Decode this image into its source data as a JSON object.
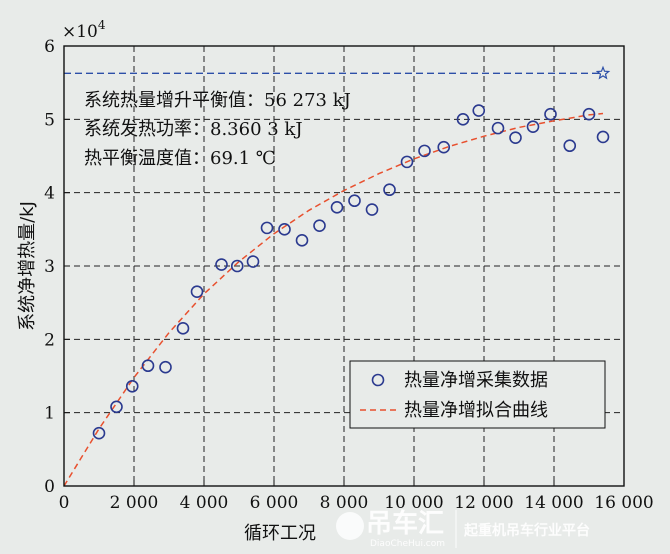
{
  "colors": {
    "background": "#e8ebe9",
    "points": "#2b3a8f",
    "fit_line": "#e8502e",
    "balance_line": "#2c4fa8",
    "grid": "#222222"
  },
  "chart_data": {
    "type": "scatter",
    "xlabel": "循环工况",
    "ylabel": "系统净增热量/kJ",
    "y_multiplier": "×10",
    "y_multiplier_exp": "4",
    "xlim": [
      0,
      16000
    ],
    "ylim": [
      0,
      6
    ],
    "x_ticks": [
      0,
      2000,
      4000,
      6000,
      8000,
      10000,
      12000,
      14000,
      16000
    ],
    "x_tick_labels": [
      "0",
      "2 000",
      "4 000",
      "6 000",
      "8 000",
      "10 000",
      "12 000",
      "14 000",
      "16 000"
    ],
    "y_ticks": [
      0,
      1,
      2,
      3,
      4,
      5,
      6
    ],
    "y_tick_labels": [
      "0",
      "1",
      "2",
      "3",
      "4",
      "5",
      "6"
    ],
    "grid": true,
    "legend_position": "bottom-right",
    "series": [
      {
        "name": "热量净增采集数据",
        "kind": "scatter",
        "marker": "circle",
        "x": [
          1000,
          1500,
          1950,
          2400,
          2900,
          3400,
          3800,
          4500,
          4950,
          5400,
          5800,
          6300,
          6800,
          7300,
          7800,
          8300,
          8800,
          9300,
          9800,
          10300,
          10850,
          11400,
          11850,
          12400,
          12900,
          13400,
          13900,
          14450,
          15000,
          15400
        ],
        "y": [
          0.72,
          1.08,
          1.36,
          1.64,
          1.62,
          2.15,
          2.65,
          3.02,
          3.0,
          3.06,
          3.52,
          3.5,
          3.35,
          3.55,
          3.8,
          3.89,
          3.77,
          4.04,
          4.42,
          4.57,
          4.62,
          5.0,
          5.12,
          4.88,
          4.75,
          4.9,
          5.07,
          4.64,
          5.07,
          4.76
        ]
      },
      {
        "name": "热量净增拟合曲线",
        "kind": "line",
        "style": "dashed",
        "x": [
          0,
          1000,
          2000,
          3000,
          4000,
          5000,
          6000,
          7000,
          8000,
          9000,
          10000,
          11000,
          12000,
          13000,
          14000,
          15000,
          15400
        ],
        "y": [
          0.0,
          0.78,
          1.48,
          2.09,
          2.62,
          3.06,
          3.44,
          3.76,
          4.03,
          4.26,
          4.46,
          4.63,
          4.77,
          4.89,
          4.98,
          5.06,
          5.08
        ]
      },
      {
        "kind": "line",
        "style": "dashed",
        "x": [
          0,
          15400
        ],
        "y": [
          5.6273,
          5.6273
        ]
      },
      {
        "kind": "scatter",
        "marker": "star",
        "x": [
          15400
        ],
        "y": [
          5.6273
        ]
      }
    ],
    "annotations": [
      "系统热量增升平衡值：56 273 kJ",
      "系统发热功率：8.360 3 kJ",
      "热平衡温度值：69.1 ℃"
    ]
  },
  "watermark": {
    "brand": "吊车汇",
    "site": "DiaoCheHui.com",
    "slogan": "起重机吊车行业平台"
  }
}
